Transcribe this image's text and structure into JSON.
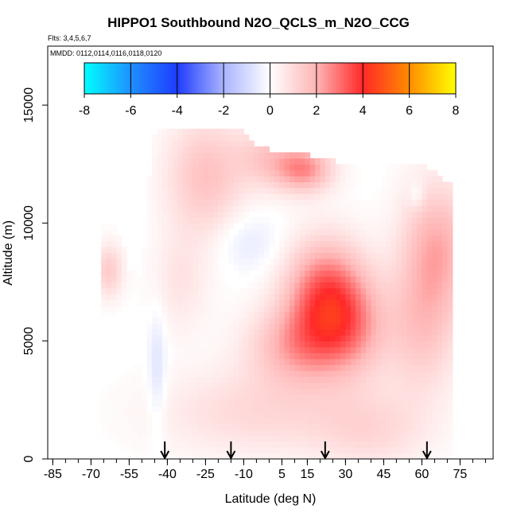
{
  "chart_data": {
    "type": "heatmap",
    "title": "HIPPO1 Southbound N2O_QCLS_m_N2O_CCG",
    "flights_label": "Flts: 3,4,5,6,7",
    "dates_label": "MMDD: 0112,0114,0116,0118,0120",
    "xlabel": "Latitude (deg N)",
    "ylabel": "Altitude (m)",
    "xlim": [
      -87,
      88
    ],
    "ylim": [
      0,
      17500
    ],
    "x_ticks": [
      -85,
      -70,
      -55,
      -40,
      -25,
      -10,
      5,
      15,
      30,
      45,
      60,
      75
    ],
    "x_minor_step": 5,
    "y_ticks": [
      0,
      5000,
      10000,
      15000
    ],
    "colorbar": {
      "ticks": [
        -8,
        -6,
        -4,
        -2,
        0,
        2,
        4,
        6,
        8
      ],
      "range": [
        -8,
        8
      ],
      "colors": [
        {
          "v": -8,
          "c": "#00ffff"
        },
        {
          "v": -6,
          "c": "#1e90ff"
        },
        {
          "v": -4,
          "c": "#1e3cff"
        },
        {
          "v": -2,
          "c": "#aab4ff"
        },
        {
          "v": 0,
          "c": "#ffffff"
        },
        {
          "v": 2,
          "c": "#ffb4b4"
        },
        {
          "v": 4,
          "c": "#ff2828"
        },
        {
          "v": 6,
          "c": "#ff8c00"
        },
        {
          "v": 8,
          "c": "#ffff00"
        }
      ]
    },
    "arrows_latitude": [
      -41,
      -15,
      22,
      62
    ],
    "field": {
      "note": "Gridded difference field (ppb) reconstructed from image",
      "lat_start": -72,
      "lat_step": 2,
      "nlat": 72,
      "alt_start": 0,
      "alt_step": 250,
      "nalt": 57,
      "blobs": [
        {
          "lat": 22,
          "alt": 7000,
          "slat": 11,
          "salt": 1600,
          "amp": 3.2
        },
        {
          "lat": 12,
          "alt": 4800,
          "slat": 14,
          "salt": 1200,
          "amp": 2.0
        },
        {
          "lat": 33,
          "alt": 5600,
          "slat": 10,
          "salt": 1500,
          "amp": 1.6
        },
        {
          "lat": 14,
          "alt": 12300,
          "slat": 8,
          "salt": 700,
          "amp": 2.4
        },
        {
          "lat": 0,
          "alt": 12800,
          "slat": 9,
          "salt": 900,
          "amp": 1.3
        },
        {
          "lat": -25,
          "alt": 12000,
          "slat": 11,
          "salt": 1800,
          "amp": 1.6
        },
        {
          "lat": 66,
          "alt": 9000,
          "slat": 10,
          "salt": 2000,
          "amp": 2.0
        },
        {
          "lat": 60,
          "alt": 5500,
          "slat": 10,
          "salt": 2000,
          "amp": 1.4
        },
        {
          "lat": -63,
          "alt": 8000,
          "slat": 4,
          "salt": 800,
          "amp": 1.4
        },
        {
          "lat": -5,
          "alt": 2000,
          "slat": 28,
          "salt": 1300,
          "amp": 1.0
        },
        {
          "lat": 40,
          "alt": 1200,
          "slat": 16,
          "salt": 1200,
          "amp": 0.9
        },
        {
          "lat": -35,
          "alt": 7500,
          "slat": 8,
          "salt": 1500,
          "amp": 0.7
        },
        {
          "lat": -44,
          "alt": 3800,
          "slat": 2.5,
          "salt": 1800,
          "amp": -0.8
        },
        {
          "lat": 58,
          "alt": 11200,
          "slat": 2,
          "salt": 400,
          "amp": -0.6
        },
        {
          "lat": -8,
          "alt": 9200,
          "slat": 9,
          "salt": 900,
          "amp": -0.6
        }
      ],
      "footprint": {
        "note": "Altitude extent of data coverage per latitude (m)",
        "lats": [
          -72,
          -68,
          -65,
          -62,
          -58,
          -55,
          -50,
          -46,
          -42,
          -38,
          -30,
          -20,
          -12,
          -5,
          5,
          15,
          30,
          40,
          50,
          55,
          62,
          66,
          72,
          76,
          78
        ],
        "top": [
          800,
          2500,
          9800,
          10000,
          9300,
          8000,
          7500,
          13500,
          14000,
          14000,
          14000,
          14000,
          14000,
          13200,
          12800,
          12800,
          12400,
          12400,
          12400,
          12400,
          12300,
          12000,
          11500,
          9500,
          7500
        ]
      }
    }
  }
}
